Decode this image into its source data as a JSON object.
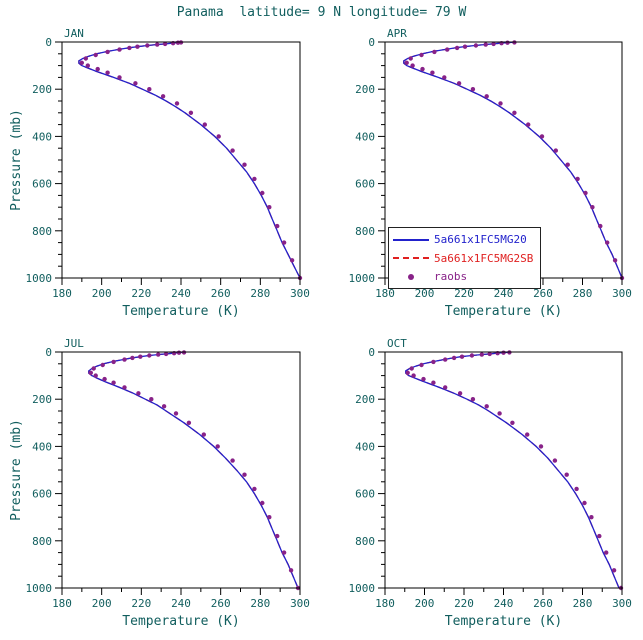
{
  "title": "Panama  latitude= 9 N longitude= 79 W",
  "colors": {
    "model1_blue": "#2222cc",
    "model2_red": "#e02020",
    "raobs_purple": "#882288",
    "text": "#115e5e",
    "axis": "#000000"
  },
  "chart_data": {
    "type": "line",
    "xlabel": "Temperature (K)",
    "ylabel": "Pressure (mb)",
    "axes": {
      "xlim": [
        180,
        300
      ],
      "ylim": [
        0,
        1000
      ],
      "y_increases_downward": true,
      "xticks": [
        180,
        200,
        220,
        240,
        260,
        280,
        300
      ],
      "xminor": [
        190,
        210,
        230,
        250,
        270,
        290
      ],
      "yticks": [
        0,
        200,
        400,
        600,
        800,
        1000
      ],
      "yminor": [
        50,
        100,
        150,
        250,
        300,
        350,
        450,
        500,
        550,
        650,
        700,
        750,
        850,
        900,
        950
      ],
      "grid": false
    },
    "legend_position": "middle-right-of-APR-panel",
    "series_defs": [
      {
        "name": "5a661x1FC5MG20",
        "style": "solid",
        "color": "#2222cc",
        "source": "model_points",
        "z": 1
      },
      {
        "name": "5a661x1FC5MG2SB",
        "style": "dashed",
        "color": "#e02020",
        "source": "model_points",
        "extra_source": "model2_extra",
        "z": 0
      },
      {
        "name": "raobs",
        "style": "dots",
        "color": "#882288",
        "source": "raobs_points",
        "z": 2
      }
    ],
    "panels": [
      {
        "label": "JAN",
        "model_points": [
          [
            1000,
            300
          ],
          [
            950,
            297
          ],
          [
            900,
            294
          ],
          [
            850,
            291
          ],
          [
            800,
            288.5
          ],
          [
            750,
            286
          ],
          [
            700,
            283.5
          ],
          [
            650,
            280.5
          ],
          [
            600,
            277
          ],
          [
            550,
            273
          ],
          [
            500,
            268
          ],
          [
            450,
            263
          ],
          [
            400,
            257
          ],
          [
            350,
            250
          ],
          [
            300,
            242
          ],
          [
            275,
            237.5
          ],
          [
            250,
            232.5
          ],
          [
            225,
            227
          ],
          [
            200,
            220.5
          ],
          [
            175,
            214
          ],
          [
            150,
            206
          ],
          [
            125,
            197.5
          ],
          [
            110,
            193
          ],
          [
            100,
            190
          ],
          [
            90,
            188.5
          ],
          [
            80,
            188.5
          ],
          [
            70,
            190.5
          ],
          [
            60,
            193.5
          ],
          [
            50,
            197.5
          ],
          [
            40,
            203
          ],
          [
            30,
            209.5
          ],
          [
            25,
            213.5
          ],
          [
            20,
            218
          ],
          [
            15,
            223
          ],
          [
            10,
            229
          ],
          [
            7,
            233
          ],
          [
            5,
            235.5
          ],
          [
            3,
            238
          ],
          [
            1,
            240
          ]
        ],
        "model2_extra": [
          [
            0.5,
            241
          ]
        ],
        "raobs_points": [
          [
            1000,
            300
          ],
          [
            925,
            296
          ],
          [
            850,
            292
          ],
          [
            780,
            288.5
          ],
          [
            700,
            284.5
          ],
          [
            640,
            281
          ],
          [
            580,
            277
          ],
          [
            520,
            272
          ],
          [
            460,
            266
          ],
          [
            400,
            259
          ],
          [
            350,
            252
          ],
          [
            300,
            245
          ],
          [
            260,
            238
          ],
          [
            230,
            231
          ],
          [
            200,
            224
          ],
          [
            175,
            217
          ],
          [
            150,
            209
          ],
          [
            130,
            203
          ],
          [
            115,
            198
          ],
          [
            100,
            193
          ],
          [
            88,
            190
          ],
          [
            70,
            192
          ],
          [
            55,
            197
          ],
          [
            42,
            203
          ],
          [
            32,
            209
          ],
          [
            25,
            214
          ],
          [
            20,
            218
          ],
          [
            15,
            223
          ],
          [
            11,
            228
          ],
          [
            8,
            232
          ],
          [
            5,
            236
          ],
          [
            3,
            238.5
          ],
          [
            1.5,
            240
          ]
        ]
      },
      {
        "label": "APR",
        "model_points": [
          [
            1000,
            300
          ],
          [
            950,
            297.5
          ],
          [
            900,
            295
          ],
          [
            850,
            292
          ],
          [
            800,
            289.5
          ],
          [
            750,
            287
          ],
          [
            700,
            284.5
          ],
          [
            650,
            281.5
          ],
          [
            600,
            278
          ],
          [
            550,
            274
          ],
          [
            500,
            269
          ],
          [
            450,
            264
          ],
          [
            400,
            258
          ],
          [
            350,
            251
          ],
          [
            300,
            243
          ],
          [
            275,
            238.5
          ],
          [
            250,
            233.5
          ],
          [
            225,
            228
          ],
          [
            200,
            221.5
          ],
          [
            175,
            215
          ],
          [
            150,
            207
          ],
          [
            125,
            198.5
          ],
          [
            110,
            194
          ],
          [
            100,
            191
          ],
          [
            90,
            189.5
          ],
          [
            80,
            189.5
          ],
          [
            70,
            191.5
          ],
          [
            60,
            194.5
          ],
          [
            50,
            199
          ],
          [
            40,
            204.5
          ],
          [
            30,
            211.5
          ],
          [
            25,
            215.5
          ],
          [
            20,
            220
          ],
          [
            15,
            225.5
          ],
          [
            10,
            231.5
          ],
          [
            7,
            235.5
          ],
          [
            5,
            238.5
          ],
          [
            3,
            241.5
          ],
          [
            1,
            245
          ]
        ],
        "model2_extra": [
          [
            0.5,
            246.5
          ]
        ],
        "raobs_points": [
          [
            1000,
            300
          ],
          [
            925,
            296.5
          ],
          [
            850,
            292.5
          ],
          [
            780,
            289
          ],
          [
            700,
            285
          ],
          [
            640,
            281.5
          ],
          [
            580,
            277.5
          ],
          [
            520,
            272.5
          ],
          [
            460,
            266.5
          ],
          [
            400,
            259.5
          ],
          [
            350,
            252.5
          ],
          [
            300,
            245.5
          ],
          [
            260,
            238.5
          ],
          [
            230,
            231.5
          ],
          [
            200,
            224.5
          ],
          [
            175,
            217.5
          ],
          [
            150,
            210
          ],
          [
            130,
            204
          ],
          [
            115,
            199
          ],
          [
            100,
            194
          ],
          [
            88,
            191
          ],
          [
            70,
            193
          ],
          [
            55,
            198.5
          ],
          [
            42,
            205
          ],
          [
            32,
            211.5
          ],
          [
            25,
            216.5
          ],
          [
            20,
            220.5
          ],
          [
            15,
            226
          ],
          [
            11,
            231
          ],
          [
            8,
            235
          ],
          [
            5,
            239
          ],
          [
            3,
            242
          ],
          [
            1.5,
            245.5
          ]
        ]
      },
      {
        "label": "JUL",
        "model_points": [
          [
            1000,
            299
          ],
          [
            950,
            296.5
          ],
          [
            900,
            294
          ],
          [
            850,
            291
          ],
          [
            800,
            288.5
          ],
          [
            750,
            286
          ],
          [
            700,
            283.5
          ],
          [
            650,
            280.5
          ],
          [
            600,
            277
          ],
          [
            550,
            273
          ],
          [
            500,
            268
          ],
          [
            450,
            262.5
          ],
          [
            400,
            256.5
          ],
          [
            350,
            249.5
          ],
          [
            300,
            241.5
          ],
          [
            275,
            237
          ],
          [
            250,
            232.5
          ],
          [
            225,
            228
          ],
          [
            200,
            222
          ],
          [
            175,
            216
          ],
          [
            150,
            209
          ],
          [
            125,
            201.5
          ],
          [
            110,
            197.5
          ],
          [
            100,
            195
          ],
          [
            90,
            193.5
          ],
          [
            80,
            193.5
          ],
          [
            70,
            195
          ],
          [
            60,
            197.5
          ],
          [
            50,
            201
          ],
          [
            40,
            206
          ],
          [
            30,
            212
          ],
          [
            25,
            215.5
          ],
          [
            20,
            219.5
          ],
          [
            15,
            224
          ],
          [
            10,
            229.5
          ],
          [
            7,
            233.5
          ],
          [
            5,
            236
          ],
          [
            3,
            238.5
          ],
          [
            1,
            241
          ]
        ],
        "model2_extra": [
          [
            0.5,
            243
          ]
        ],
        "raobs_points": [
          [
            1000,
            299
          ],
          [
            925,
            295.5
          ],
          [
            850,
            292
          ],
          [
            780,
            288.5
          ],
          [
            700,
            284.5
          ],
          [
            640,
            281
          ],
          [
            580,
            277
          ],
          [
            520,
            272
          ],
          [
            460,
            266
          ],
          [
            400,
            258.5
          ],
          [
            350,
            251.5
          ],
          [
            300,
            244
          ],
          [
            260,
            237.5
          ],
          [
            230,
            231.5
          ],
          [
            200,
            225
          ],
          [
            175,
            218.5
          ],
          [
            150,
            211.5
          ],
          [
            130,
            206
          ],
          [
            115,
            201.5
          ],
          [
            100,
            197
          ],
          [
            88,
            194.5
          ],
          [
            70,
            196
          ],
          [
            55,
            200.5
          ],
          [
            42,
            206
          ],
          [
            32,
            211.5
          ],
          [
            25,
            215.5
          ],
          [
            20,
            219.5
          ],
          [
            15,
            224
          ],
          [
            11,
            228.5
          ],
          [
            8,
            232.5
          ],
          [
            5,
            236.5
          ],
          [
            3,
            239
          ],
          [
            1.5,
            241.5
          ]
        ]
      },
      {
        "label": "OCT",
        "model_points": [
          [
            1000,
            298.5
          ],
          [
            950,
            296
          ],
          [
            900,
            293.5
          ],
          [
            850,
            290.5
          ],
          [
            800,
            288
          ],
          [
            750,
            285.5
          ],
          [
            700,
            283
          ],
          [
            650,
            280
          ],
          [
            600,
            276.5
          ],
          [
            550,
            272.5
          ],
          [
            500,
            267.5
          ],
          [
            450,
            262.5
          ],
          [
            400,
            256.5
          ],
          [
            350,
            249.5
          ],
          [
            300,
            241.5
          ],
          [
            275,
            237
          ],
          [
            250,
            232.5
          ],
          [
            225,
            227.5
          ],
          [
            200,
            221.5
          ],
          [
            175,
            215
          ],
          [
            150,
            207.5
          ],
          [
            125,
            199.5
          ],
          [
            110,
            195
          ],
          [
            100,
            192
          ],
          [
            90,
            190.5
          ],
          [
            80,
            190.5
          ],
          [
            70,
            192.5
          ],
          [
            60,
            195.5
          ],
          [
            50,
            199.5
          ],
          [
            40,
            205
          ],
          [
            30,
            211
          ],
          [
            25,
            214.5
          ],
          [
            20,
            218.5
          ],
          [
            15,
            224
          ],
          [
            10,
            230
          ],
          [
            7,
            234
          ],
          [
            5,
            236.5
          ],
          [
            3,
            239.5
          ],
          [
            1,
            243
          ]
        ],
        "model2_extra": [
          [
            0.5,
            244.5
          ]
        ],
        "raobs_points": [
          [
            1000,
            299.5
          ],
          [
            925,
            296
          ],
          [
            850,
            292
          ],
          [
            780,
            288.5
          ],
          [
            700,
            284.5
          ],
          [
            640,
            281
          ],
          [
            580,
            277
          ],
          [
            520,
            272
          ],
          [
            460,
            266
          ],
          [
            400,
            259
          ],
          [
            350,
            252
          ],
          [
            300,
            244.5
          ],
          [
            260,
            238
          ],
          [
            230,
            231.5
          ],
          [
            200,
            224.5
          ],
          [
            175,
            218
          ],
          [
            150,
            210.5
          ],
          [
            130,
            204.5
          ],
          [
            115,
            199.5
          ],
          [
            100,
            194.5
          ],
          [
            88,
            191.5
          ],
          [
            70,
            193.5
          ],
          [
            55,
            198.5
          ],
          [
            42,
            204.5
          ],
          [
            32,
            210.5
          ],
          [
            25,
            215
          ],
          [
            20,
            219
          ],
          [
            15,
            224
          ],
          [
            11,
            229
          ],
          [
            8,
            233
          ],
          [
            5,
            237
          ],
          [
            3,
            240
          ],
          [
            1.5,
            243
          ]
        ]
      }
    ]
  },
  "legend": {
    "items": [
      {
        "label": "5a661x1FC5MG20",
        "swatch": "solid-line",
        "color": "#2222cc"
      },
      {
        "label": "5a661x1FC5MG2SB",
        "swatch": "dashed-line",
        "color": "#e02020"
      },
      {
        "label": "raobs",
        "swatch": "dot",
        "color": "#882288"
      }
    ]
  }
}
